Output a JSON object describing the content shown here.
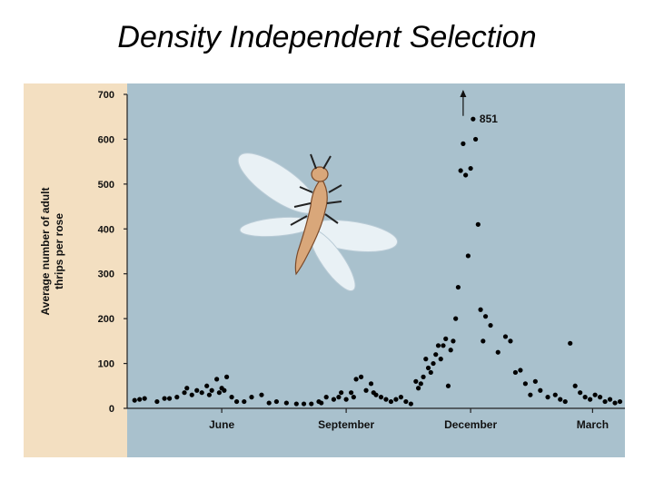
{
  "slide": {
    "title": "Density Independent Selection"
  },
  "chart_data": {
    "type": "scatter",
    "title": "",
    "xlabel": "",
    "ylabel": "Average number of adult thrips per rose",
    "ylim": [
      0,
      700
    ],
    "yticks": [
      0,
      100,
      200,
      300,
      400,
      500,
      600,
      700
    ],
    "x_tick_labels": [
      {
        "label": "June",
        "x": 0.19
      },
      {
        "label": "September",
        "x": 0.44
      },
      {
        "label": "December",
        "x": 0.69
      },
      {
        "label": "March",
        "x": 0.935
      }
    ],
    "grid": false,
    "legend": "none",
    "annotations": [
      {
        "text": "851",
        "x": 0.675,
        "y": 645
      }
    ],
    "colors": {
      "plot_background": "#a9c1cd",
      "strip_background": "#f3dfc1",
      "points": "#000000",
      "thrips_body": "#d9a77a",
      "thrips_wing": "#e9f1f5"
    },
    "illustration": "thrips-insect",
    "series": [
      {
        "x": [
          0.015,
          0.025,
          0.035,
          0.06,
          0.075,
          0.085,
          0.1,
          0.115,
          0.12,
          0.13,
          0.14,
          0.15,
          0.16,
          0.165,
          0.17,
          0.18,
          0.185,
          0.19,
          0.195,
          0.2,
          0.21,
          0.22,
          0.235,
          0.25,
          0.27,
          0.285,
          0.3,
          0.32,
          0.34,
          0.355,
          0.37,
          0.385,
          0.39,
          0.4,
          0.415,
          0.425,
          0.43,
          0.44,
          0.45,
          0.455,
          0.46,
          0.47,
          0.48,
          0.49,
          0.495,
          0.5,
          0.51,
          0.52,
          0.53,
          0.54,
          0.55,
          0.56,
          0.57,
          0.58,
          0.585,
          0.59,
          0.595,
          0.6,
          0.605,
          0.61,
          0.615,
          0.62,
          0.625,
          0.63,
          0.635,
          0.64,
          0.645,
          0.65,
          0.655,
          0.66,
          0.665,
          0.67,
          0.675,
          0.68,
          0.685,
          0.69,
          0.695,
          0.7,
          0.705,
          0.71,
          0.715,
          0.72,
          0.73,
          0.745,
          0.76,
          0.77,
          0.78,
          0.79,
          0.8,
          0.81,
          0.82,
          0.83,
          0.845,
          0.86,
          0.87,
          0.88,
          0.89,
          0.9,
          0.91,
          0.92,
          0.93,
          0.94,
          0.95,
          0.96,
          0.97,
          0.98,
          0.99
        ],
        "y": [
          18,
          20,
          22,
          15,
          22,
          22,
          25,
          35,
          45,
          30,
          40,
          35,
          50,
          30,
          40,
          65,
          35,
          45,
          40,
          70,
          25,
          15,
          15,
          25,
          30,
          12,
          15,
          12,
          10,
          10,
          10,
          15,
          12,
          25,
          20,
          25,
          35,
          20,
          35,
          25,
          65,
          70,
          40,
          55,
          35,
          30,
          25,
          20,
          15,
          20,
          25,
          15,
          10,
          60,
          45,
          55,
          70,
          110,
          90,
          80,
          100,
          120,
          140,
          110,
          140,
          155,
          50,
          130,
          150,
          200,
          270,
          530,
          590,
          520,
          340,
          535,
          645,
          600,
          410,
          220,
          150,
          205,
          185,
          125,
          160,
          150,
          80,
          85,
          55,
          30,
          60,
          40,
          25,
          30,
          20,
          15,
          145,
          50,
          35,
          25,
          20,
          30,
          25,
          15,
          20,
          12,
          15
        ]
      }
    ]
  }
}
